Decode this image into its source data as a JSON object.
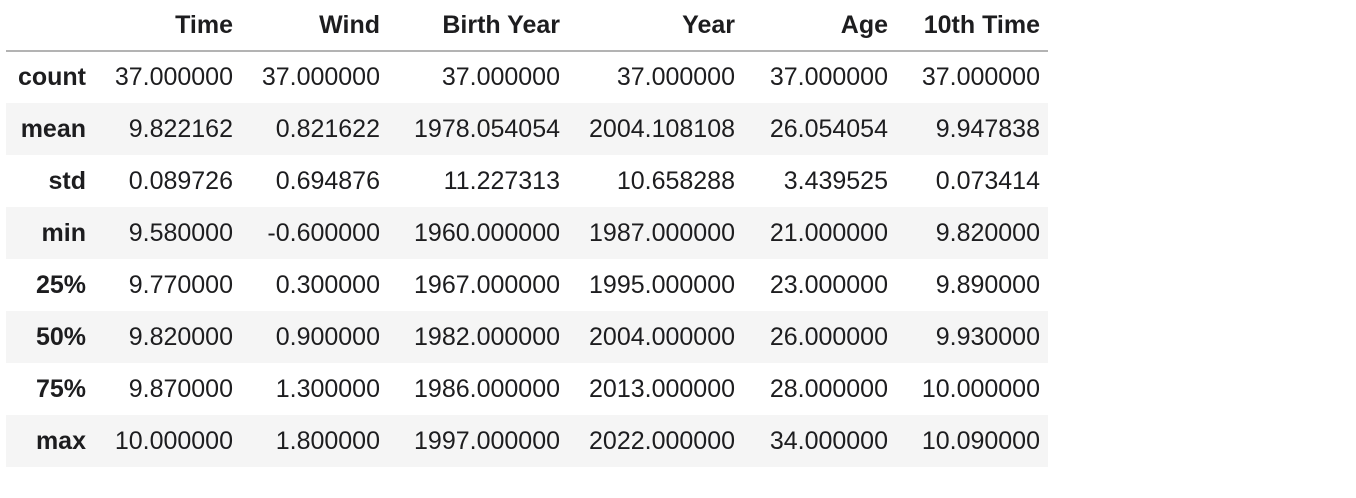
{
  "chart_data": {
    "type": "table",
    "title": "",
    "columns": [
      "",
      "Time",
      "Wind",
      "Birth Year",
      "Year",
      "Age",
      "10th Time"
    ],
    "row_labels": [
      "count",
      "mean",
      "std",
      "min",
      "25%",
      "50%",
      "75%",
      "max"
    ],
    "rows": [
      [
        "37.000000",
        "37.000000",
        "37.000000",
        "37.000000",
        "37.000000",
        "37.000000"
      ],
      [
        "9.822162",
        "0.821622",
        "1978.054054",
        "2004.108108",
        "26.054054",
        "9.947838"
      ],
      [
        "0.089726",
        "0.694876",
        "11.227313",
        "10.658288",
        "3.439525",
        "0.073414"
      ],
      [
        "9.580000",
        "-0.600000",
        "1960.000000",
        "1987.000000",
        "21.000000",
        "9.820000"
      ],
      [
        "9.770000",
        "0.300000",
        "1967.000000",
        "1995.000000",
        "23.000000",
        "9.890000"
      ],
      [
        "9.820000",
        "0.900000",
        "1982.000000",
        "2004.000000",
        "26.000000",
        "9.930000"
      ],
      [
        "9.870000",
        "1.300000",
        "1986.000000",
        "2013.000000",
        "28.000000",
        "10.000000"
      ],
      [
        "10.000000",
        "1.800000",
        "1997.000000",
        "2022.000000",
        "34.000000",
        "10.090000"
      ]
    ],
    "layout_hints": {
      "row_striping": "even rows shaded",
      "alignment": "right",
      "header_rule": true
    }
  },
  "colors": {
    "stripe": "#f5f5f5",
    "header_border": "#b3b3b3",
    "text": "#1d1d1f",
    "background": "#ffffff"
  }
}
